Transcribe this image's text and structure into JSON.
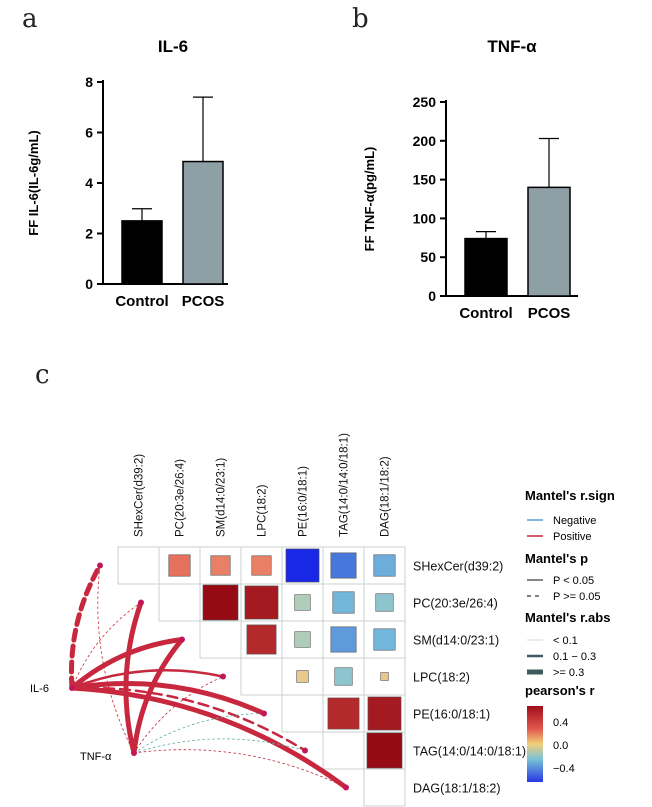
{
  "panels": {
    "a": "a",
    "b": "b",
    "c": "c"
  },
  "chart_data": [
    {
      "type": "bar",
      "title": "IL-6",
      "ylabel": "FF  IL-6(IL-6g/mL)",
      "categories": [
        "Control",
        "PCOS"
      ],
      "values": [
        2.5,
        4.85
      ],
      "error": [
        0.48,
        2.55
      ],
      "ylim": [
        0,
        8
      ],
      "yticks": [
        "0",
        "2",
        "4",
        "6",
        "8"
      ],
      "colors": [
        "#000000",
        "#8f9fa6"
      ]
    },
    {
      "type": "bar",
      "title": "TNF-α",
      "ylabel": "FF  TNF-α(pg/mL)",
      "categories": [
        "Control",
        "PCOS"
      ],
      "values": [
        74,
        140
      ],
      "error": [
        9,
        63
      ],
      "ylim": [
        0,
        250
      ],
      "yticks": [
        "0",
        "50",
        "100",
        "150",
        "200",
        "250"
      ],
      "colors": [
        "#000000",
        "#8f9fa6"
      ]
    },
    {
      "type": "heatmap",
      "variables": [
        "SHexCer(d39:2)",
        "PC(20:3e/26:4)",
        "SM(d14:0/23:1)",
        "LPC(18:2)",
        "PE(16:0/18:1)",
        "TAG(14:0/14:0/18:1)",
        "DAG(18:1/18:2)"
      ],
      "pearson_r": [
        [
          null,
          0.25,
          0.22,
          0.22,
          -0.55,
          -0.3,
          -0.15
        ],
        [
          null,
          null,
          0.55,
          0.5,
          -0.05,
          -0.12,
          -0.08
        ],
        [
          null,
          null,
          null,
          0.45,
          -0.05,
          -0.2,
          -0.12
        ],
        [
          null,
          null,
          null,
          null,
          0.05,
          -0.08,
          0.05
        ],
        [
          null,
          null,
          null,
          null,
          null,
          0.45,
          0.5
        ],
        [
          null,
          null,
          null,
          null,
          null,
          null,
          0.55
        ],
        [
          null,
          null,
          null,
          null,
          null,
          null,
          null
        ]
      ],
      "size": [
        [
          0,
          0.55,
          0.5,
          0.5,
          0.85,
          0.65,
          0.55
        ],
        [
          0,
          0,
          0.9,
          0.85,
          0.4,
          0.55,
          0.45
        ],
        [
          0,
          0,
          0,
          0.75,
          0.4,
          0.65,
          0.55
        ],
        [
          0,
          0,
          0,
          0,
          0.3,
          0.45,
          0.2
        ],
        [
          0,
          0,
          0,
          0,
          0,
          0.8,
          0.85
        ],
        [
          0,
          0,
          0,
          0,
          0,
          0,
          0.9
        ],
        [
          0,
          0,
          0,
          0,
          0,
          0,
          0
        ]
      ],
      "mantel_sources": [
        "IL-6",
        "TNF-α"
      ],
      "mantel_links": [
        {
          "from": "IL-6",
          "to": "SHexCer(d39:2)",
          "sign": "Positive",
          "p": ">=0.05",
          "r_abs": ">=0.3"
        },
        {
          "from": "IL-6",
          "to": "PC(20:3e/26:4)",
          "sign": "Positive",
          "p": ">=0.05",
          "r_abs": "<0.1"
        },
        {
          "from": "IL-6",
          "to": "SM(d14:0/23:1)",
          "sign": "Positive",
          "p": "<0.05",
          "r_abs": ">=0.3"
        },
        {
          "from": "IL-6",
          "to": "LPC(18:2)",
          "sign": "Positive",
          "p": "<0.05",
          "r_abs": "0.1-0.3"
        },
        {
          "from": "IL-6",
          "to": "PE(16:0/18:1)",
          "sign": "Positive",
          "p": "<0.05",
          "r_abs": ">=0.3"
        },
        {
          "from": "IL-6",
          "to": "TAG(14:0/14:0/18:1)",
          "sign": "Positive",
          "p": ">=0.05",
          "r_abs": "0.1-0.3"
        },
        {
          "from": "IL-6",
          "to": "DAG(18:1/18:2)",
          "sign": "Positive",
          "p": "<0.05",
          "r_abs": ">=0.3"
        },
        {
          "from": "TNF-α",
          "to": "SHexCer(d39:2)",
          "sign": "Positive",
          "p": ">=0.05",
          "r_abs": "<0.1"
        },
        {
          "from": "TNF-α",
          "to": "PC(20:3e/26:4)",
          "sign": "Positive",
          "p": "<0.05",
          "r_abs": ">=0.3"
        },
        {
          "from": "TNF-α",
          "to": "SM(d14:0/23:1)",
          "sign": "Positive",
          "p": "<0.05",
          "r_abs": ">=0.3"
        },
        {
          "from": "TNF-α",
          "to": "LPC(18:2)",
          "sign": "Positive",
          "p": ">=0.05",
          "r_abs": "<0.1"
        },
        {
          "from": "TNF-α",
          "to": "PE(16:0/18:1)",
          "sign": "Negative",
          "p": ">=0.05",
          "r_abs": "<0.1"
        },
        {
          "from": "TNF-α",
          "to": "TAG(14:0/14:0/18:1)",
          "sign": "Negative",
          "p": ">=0.05",
          "r_abs": "<0.1"
        },
        {
          "from": "TNF-α",
          "to": "DAG(18:1/18:2)",
          "sign": "Positive",
          "p": ">=0.05",
          "r_abs": "<0.1"
        }
      ],
      "legend": {
        "sign_title": "Mantel's r.sign",
        "sign_items": [
          {
            "label": "Negative",
            "color": "#5b9bd5"
          },
          {
            "label": "Positive",
            "color": "#c7283e"
          }
        ],
        "p_title": "Mantel's p",
        "p_items": [
          "P < 0.05",
          "P >= 0.05"
        ],
        "rabs_title": "Mantel's r.abs",
        "rabs_items": [
          "< 0.1",
          "0.1 − 0.3",
          ">= 0.3"
        ],
        "r_title": "pearson's r",
        "r_ticks": [
          "0.4",
          "0.0",
          "−0.4"
        ]
      }
    }
  ]
}
